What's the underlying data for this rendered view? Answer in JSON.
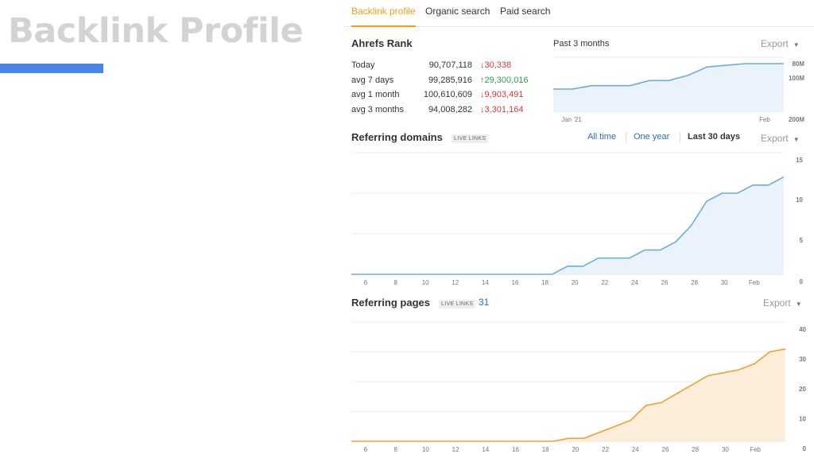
{
  "slide": {
    "title": "Backlink Profile"
  },
  "tabs": [
    {
      "label": "Backlink profile",
      "active": true
    },
    {
      "label": "Organic search",
      "active": false
    },
    {
      "label": "Paid search",
      "active": false
    }
  ],
  "ahrefs_rank": {
    "title": "Ahrefs Rank",
    "period": "Past 3 months",
    "export_label": "Export",
    "rows": [
      {
        "label": "Today",
        "value": "90,707,118",
        "change": "30,338",
        "direction": "down"
      },
      {
        "label": "avg 7 days",
        "value": "99,285,916",
        "change": "29,300,016",
        "direction": "up"
      },
      {
        "label": "avg 1 month",
        "value": "100,610,609",
        "change": "9,903,491",
        "direction": "down"
      },
      {
        "label": "avg 3 months",
        "value": "94,008,282",
        "change": "3,301,164",
        "direction": "down"
      }
    ]
  },
  "referring_domains": {
    "title": "Referring domains",
    "badge": "LIVE LINKS",
    "ranges": [
      "All time",
      "One year",
      "Last 30 days"
    ],
    "active_range": "Last 30 days",
    "export_label": "Export"
  },
  "referring_pages": {
    "title": "Referring pages",
    "badge": "LIVE LINKS",
    "count": "31",
    "export_label": "Export"
  },
  "colors": {
    "accent": "#f39c12",
    "blue_line": "#6aaed6",
    "blue_fill": "#eaf3fc",
    "orange_line": "#f0a030",
    "orange_fill": "#fdeedb",
    "link": "#2a6ebb"
  },
  "chart_data": [
    {
      "type": "area",
      "id": "ahrefs-rank",
      "x_ticks": [
        "Jan '21",
        "Feb"
      ],
      "y_ticks": [
        "80M",
        "100M",
        "200M"
      ],
      "values": [
        118,
        118,
        114,
        114,
        114,
        108,
        108,
        102,
        92,
        90,
        88,
        88,
        88
      ]
    },
    {
      "type": "area",
      "id": "referring-domains",
      "x_ticks": [
        "6",
        "8",
        "10",
        "12",
        "14",
        "16",
        "18",
        "20",
        "22",
        "24",
        "26",
        "28",
        "30",
        "Feb"
      ],
      "y_ticks": [
        "15",
        "10",
        "5",
        "0"
      ],
      "ylim": [
        0,
        15
      ],
      "values": [
        0,
        0,
        0,
        0,
        0,
        0,
        0,
        0,
        0,
        0,
        0,
        0,
        0,
        0,
        1,
        1,
        2,
        2,
        2,
        3,
        3,
        4,
        6,
        9,
        10,
        10,
        11,
        11,
        12
      ]
    },
    {
      "type": "area",
      "id": "referring-pages",
      "x_ticks": [
        "6",
        "8",
        "10",
        "12",
        "14",
        "16",
        "18",
        "20",
        "22",
        "24",
        "26",
        "28",
        "30",
        "Feb"
      ],
      "y_ticks": [
        "40",
        "30",
        "20",
        "10",
        "0"
      ],
      "ylim": [
        0,
        40
      ],
      "values": [
        0,
        0,
        0,
        0,
        0,
        0,
        0,
        0,
        0,
        0,
        0,
        0,
        0,
        0,
        1,
        1,
        3,
        5,
        7,
        12,
        13,
        16,
        19,
        22,
        23,
        24,
        26,
        30,
        31
      ]
    }
  ]
}
